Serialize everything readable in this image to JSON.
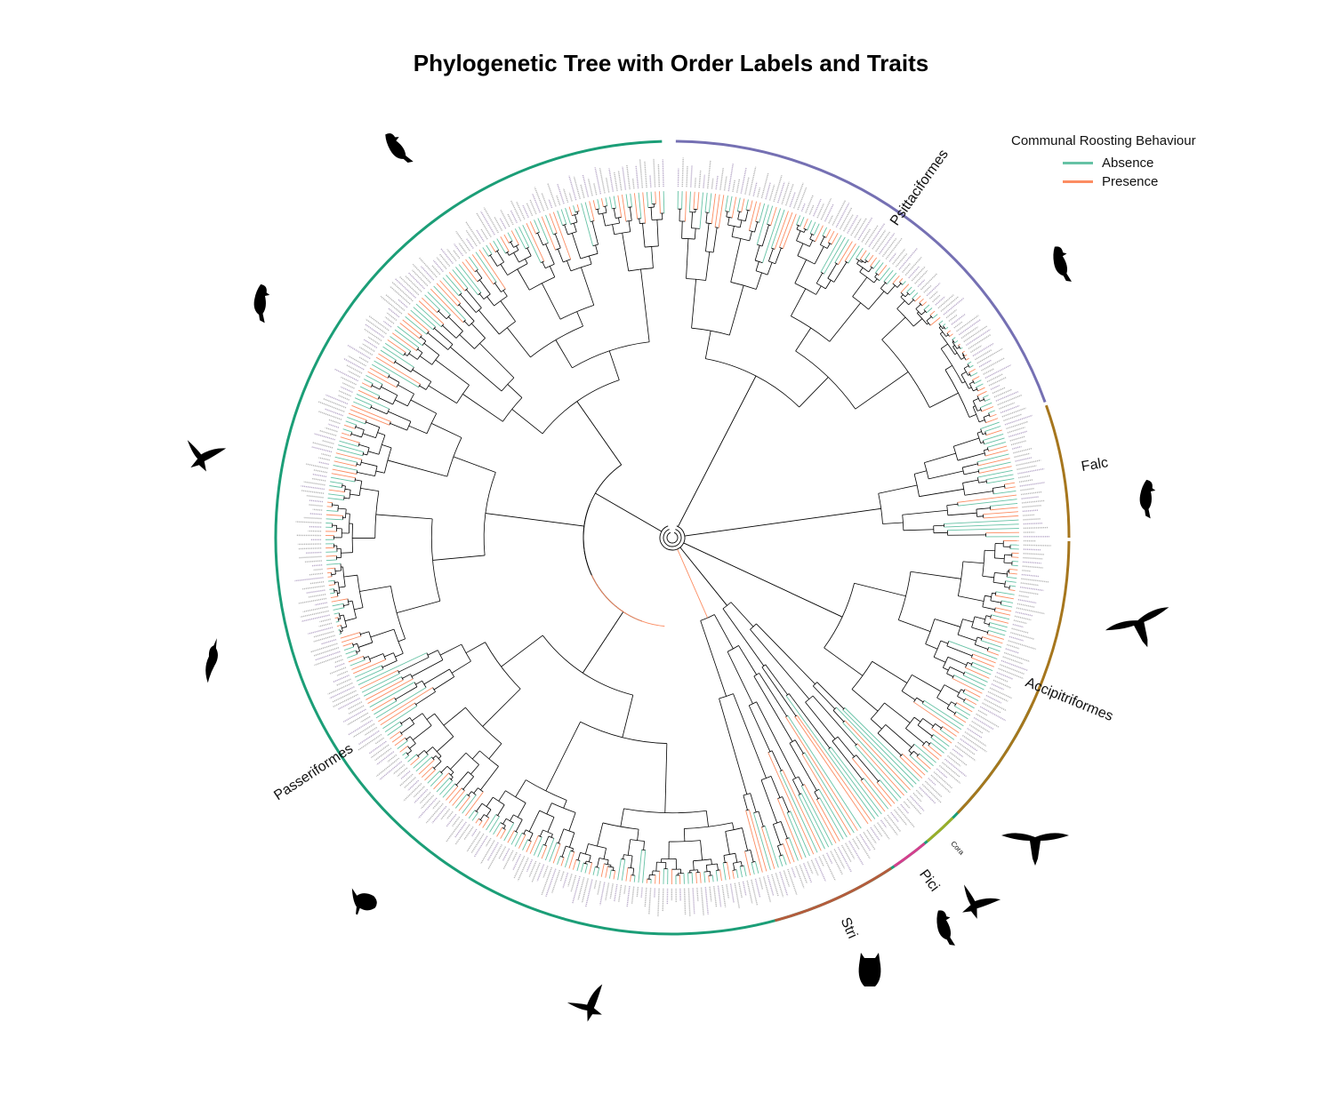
{
  "title": "Phylogenetic Tree with Order Labels and Traits",
  "legend": {
    "title": "Communal Roosting Behaviour",
    "items": [
      {
        "label": "Absence",
        "color": "#66c2a5"
      },
      {
        "label": "Presence",
        "color": "#fc8d62"
      }
    ]
  },
  "orders": [
    {
      "name": "Passeriformes",
      "color": "#1b9e77",
      "start": 115,
      "end": 358.5
    },
    {
      "name": "Psittaciformes",
      "color": "#7570b3",
      "start": 0.5,
      "end": 70
    },
    {
      "name": "Falc",
      "color": "#a6761d",
      "start": 70.5,
      "end": 90
    },
    {
      "name": "Accipitriformes",
      "color": "#a6761d",
      "start": 90.5,
      "end": 134
    },
    {
      "name": "Cora",
      "color": "#9aae2a",
      "start": 135,
      "end": 140
    },
    {
      "name": "Pici",
      "color": "#d43f8d",
      "start": 140.5,
      "end": 146
    },
    {
      "name": "Stri",
      "color": "#b45c3c",
      "start": 146.5,
      "end": 165
    }
  ],
  "tip_trait_sequence": "AAPAPPAAAPPPAAPAPAPPPAAAPAAPPPAAPAAAPAPPPAAAPPAAPAPPAAPAAAPPAPAAAPPPAAPAPAAAPPAAPAPPPAAPAPAAPPAAAPAPPAAPAAAPPAPAPAAAPPAPAAPPPAAAPAPAAPPAAPPAAAPAPAAPPAPAAAPPAAPAPPAAPAAAPPAPAPAAPAAPPAPAAAPPAAPAPPAAAPAPAAPPAPAAAPPAAPAPAAPPAAAPAPAAPAPPAAAPAPPAAPAAAPPAPAAPAPPAAAPAPAAPPAPAAAPPAAPAPPAAPAAAPPAPAPAAPAAPPAP"
}
